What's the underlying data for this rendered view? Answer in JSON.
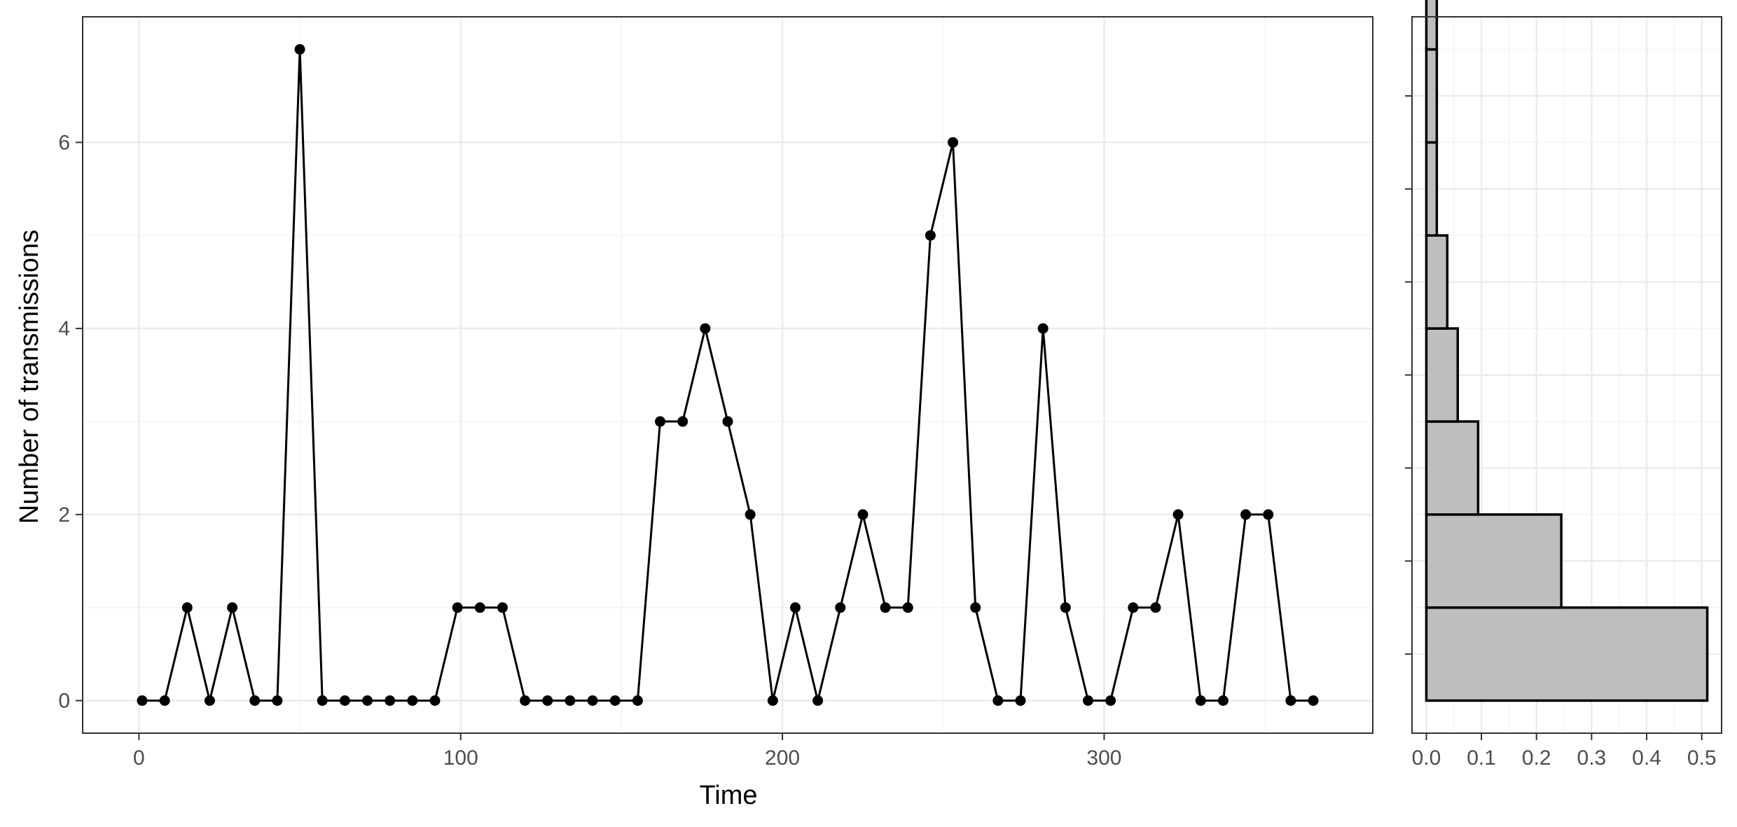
{
  "chart_data": [
    {
      "type": "line",
      "title": "",
      "xlabel": "Time",
      "ylabel": "Number of transmissions",
      "xlim": [
        -17.5,
        383.5
      ],
      "ylim": [
        -0.35,
        7.35
      ],
      "xticks": [
        0,
        100,
        200,
        300
      ],
      "xtick_labels": [
        "0",
        "100",
        "200",
        "300"
      ],
      "yticks": [
        0,
        2,
        4,
        6
      ],
      "ytick_labels": [
        "0",
        "2",
        "4",
        "6"
      ],
      "grid": true,
      "markers": true,
      "series": [
        {
          "name": "transmissions",
          "x": [
            1,
            8,
            15,
            22,
            29,
            36,
            43,
            50,
            57,
            64,
            71,
            78,
            85,
            92,
            99,
            106,
            113,
            120,
            127,
            134,
            141,
            148,
            155,
            162,
            169,
            176,
            183,
            190,
            197,
            204,
            211,
            218,
            225,
            232,
            239,
            246,
            253,
            260,
            267,
            274,
            281,
            288,
            295,
            302,
            309,
            316,
            323,
            330,
            337,
            344,
            351,
            358,
            365
          ],
          "y": [
            0,
            0,
            1,
            0,
            1,
            0,
            0,
            7,
            0,
            0,
            0,
            0,
            0,
            0,
            1,
            1,
            1,
            0,
            0,
            0,
            0,
            0,
            0,
            3,
            3,
            4,
            3,
            2,
            0,
            1,
            0,
            1,
            2,
            1,
            1,
            5,
            6,
            1,
            0,
            0,
            4,
            1,
            0,
            0,
            1,
            1,
            2,
            0,
            0,
            2,
            2,
            0,
            0
          ]
        }
      ]
    },
    {
      "type": "bar",
      "orientation": "horizontal",
      "title": "",
      "xlabel": "",
      "ylabel": "",
      "xlim": [
        -0.026,
        0.536
      ],
      "xticks": [
        0.0,
        0.1,
        0.2,
        0.3,
        0.4,
        0.5
      ],
      "xtick_labels": [
        "0.0",
        "0.1",
        "0.2",
        "0.3",
        "0.4",
        "0.5"
      ],
      "grid": true,
      "bins": [
        {
          "from": 0,
          "to": 1,
          "value": 0.51
        },
        {
          "from": 1,
          "to": 2,
          "value": 0.245
        },
        {
          "from": 2,
          "to": 3,
          "value": 0.094
        },
        {
          "from": 3,
          "to": 4,
          "value": 0.057
        },
        {
          "from": 4,
          "to": 5,
          "value": 0.038
        },
        {
          "from": 5,
          "to": 6,
          "value": 0.019
        },
        {
          "from": 6,
          "to": 7,
          "value": 0.019
        },
        {
          "from": 7,
          "to": 8,
          "value": 0.019
        }
      ]
    }
  ]
}
